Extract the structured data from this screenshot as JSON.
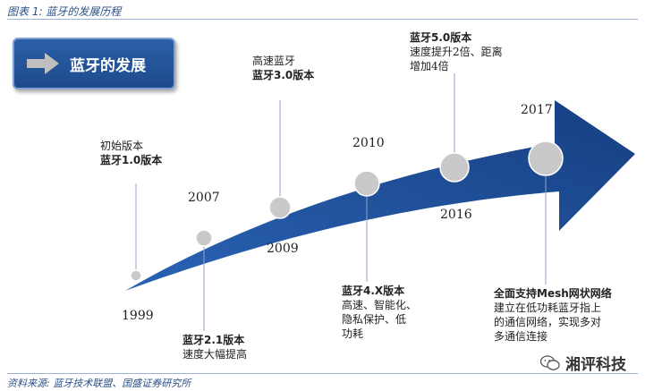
{
  "caption": "图表 1: 蓝牙的发展历程",
  "source": "资料来源: 蓝牙技术联盟、国盛证券研究所",
  "title": "蓝牙的发展",
  "watermark": "湘评科技",
  "milestones": [
    {
      "year": "1999",
      "lines": [
        "初始版本",
        "蓝牙1.0版本"
      ]
    },
    {
      "year": "2007",
      "lines": [
        "蓝牙2.1版本",
        "速度大幅提高"
      ]
    },
    {
      "year": "2009",
      "lines": [
        "高速蓝牙",
        "蓝牙3.0版本"
      ]
    },
    {
      "year": "2010",
      "lines": [
        "蓝牙4.X版本",
        "高速、智能化、",
        "隐私保护、低",
        "功耗"
      ]
    },
    {
      "year": "2016",
      "lines": [
        "蓝牙5.0版本",
        "速度提升2倍、距离",
        "增加4倍"
      ]
    },
    {
      "year": "2017",
      "lines": [
        "全面支持Mesh网状网络",
        "建立在低功耗蓝牙指上",
        "的通信网络，实现多对",
        "多通信连接"
      ]
    }
  ],
  "colors": {
    "arrow": "#1a4b94",
    "node": "#c8c8c8",
    "accent": "#2a4f86"
  }
}
